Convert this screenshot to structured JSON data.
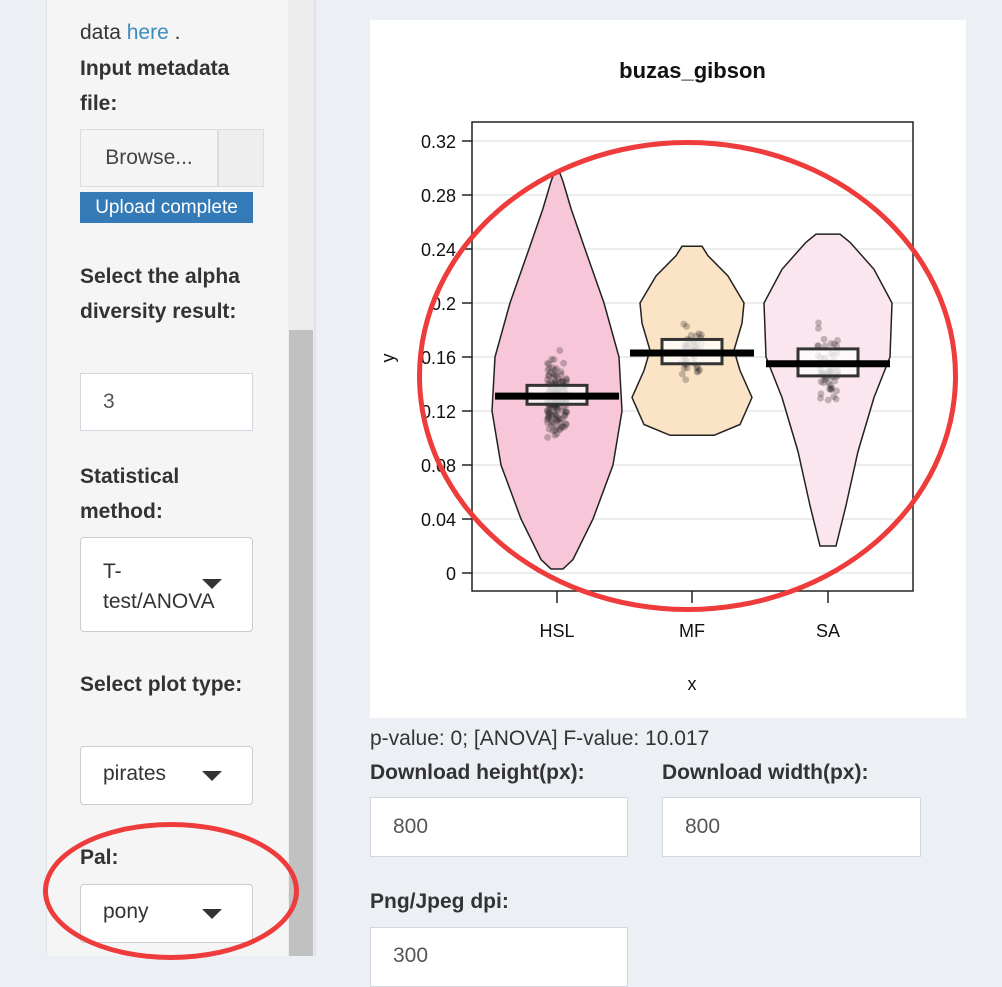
{
  "sidebar": {
    "data_prefix": "data",
    "data_link": "here",
    "data_suffix": ".",
    "metadata_label": "Input metadata file:",
    "browse_label": "Browse...",
    "upload_status": "Upload complete",
    "alpha_label": "Select the alpha diversity result:",
    "alpha_value": "3",
    "method_label": "Statistical method:",
    "method_value": "T-test/ANOVA",
    "plot_type_label": "Select plot type:",
    "plot_type_value": "pirates",
    "pal_label": "Pal:",
    "pal_value": "pony"
  },
  "main": {
    "stats_text": "p-value: 0; [ANOVA] F-value: 10.017",
    "download_height_label": "Download height(px):",
    "download_height_value": "800",
    "download_width_label": "Download width(px):",
    "download_width_value": "800",
    "dpi_label": "Png/Jpeg dpi:",
    "dpi_value": "300"
  },
  "colors": {
    "annotation": "#ee3b3b",
    "link": "#3c8dbc",
    "upload_badge": "#337ab7"
  },
  "chart_data": {
    "type": "pirate",
    "title": "buzas_gibson",
    "xlabel": "x",
    "ylabel": "y",
    "categories": [
      "HSL",
      "MF",
      "SA"
    ],
    "yticks": [
      "0",
      "0.04",
      "0.08",
      "0.12",
      "0.16",
      "0.2",
      "0.24",
      "0.28",
      "0.32"
    ],
    "ylim": [
      0,
      0.32
    ],
    "grid": true,
    "series": [
      {
        "category": "HSL",
        "mean": 0.131,
        "ci_low": 0.125,
        "ci_high": 0.139,
        "min": 0.003,
        "max": 0.296,
        "fill": "#f7c6d9"
      },
      {
        "category": "MF",
        "mean": 0.163,
        "ci_low": 0.155,
        "ci_high": 0.173,
        "min": 0.102,
        "max": 0.242,
        "fill": "#fbe3c5"
      },
      {
        "category": "SA",
        "mean": 0.155,
        "ci_low": 0.146,
        "ci_high": 0.166,
        "min": 0.02,
        "max": 0.251,
        "fill": "#fbe5ee"
      }
    ]
  }
}
